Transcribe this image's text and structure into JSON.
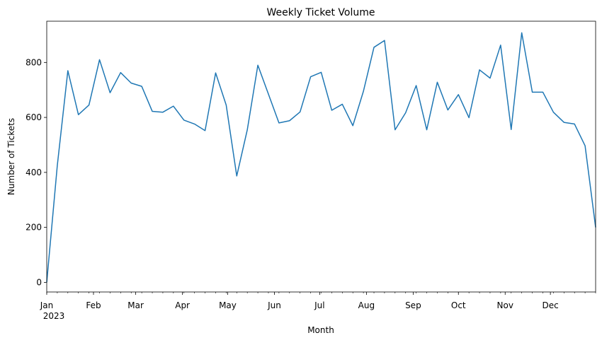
{
  "chart_data": {
    "type": "line",
    "title": "Weekly Ticket Volume",
    "xlabel": "Month",
    "ylabel": "Number of Tickets",
    "grid": false,
    "legend": "none",
    "ylim": [
      -35,
      950
    ],
    "y_ticks": [
      0,
      200,
      400,
      600,
      800
    ],
    "x_range": [
      "2023-01-01",
      "2023-12-31"
    ],
    "x_ticks": [
      {
        "date": "2023-01-01",
        "label": "Jan",
        "sublabel": "2023"
      },
      {
        "date": "2023-02-01",
        "label": "Feb"
      },
      {
        "date": "2023-03-01",
        "label": "Mar"
      },
      {
        "date": "2023-04-01",
        "label": "Apr"
      },
      {
        "date": "2023-05-01",
        "label": "May"
      },
      {
        "date": "2023-06-01",
        "label": "Jun"
      },
      {
        "date": "2023-07-01",
        "label": "Jul"
      },
      {
        "date": "2023-08-01",
        "label": "Aug"
      },
      {
        "date": "2023-09-01",
        "label": "Sep"
      },
      {
        "date": "2023-10-01",
        "label": "Oct"
      },
      {
        "date": "2023-11-01",
        "label": "Nov"
      },
      {
        "date": "2023-12-01",
        "label": "Dec"
      }
    ],
    "series": [
      {
        "color": "#1f77b4",
        "x": [
          "2023-01-01",
          "2023-01-08",
          "2023-01-15",
          "2023-01-22",
          "2023-01-29",
          "2023-02-05",
          "2023-02-12",
          "2023-02-19",
          "2023-02-26",
          "2023-03-05",
          "2023-03-12",
          "2023-03-19",
          "2023-03-26",
          "2023-04-02",
          "2023-04-09",
          "2023-04-16",
          "2023-04-23",
          "2023-04-30",
          "2023-05-07",
          "2023-05-14",
          "2023-05-21",
          "2023-05-28",
          "2023-06-04",
          "2023-06-11",
          "2023-06-18",
          "2023-06-25",
          "2023-07-02",
          "2023-07-09",
          "2023-07-16",
          "2023-07-23",
          "2023-07-30",
          "2023-08-06",
          "2023-08-13",
          "2023-08-20",
          "2023-08-27",
          "2023-09-03",
          "2023-09-10",
          "2023-09-17",
          "2023-09-24",
          "2023-10-01",
          "2023-10-08",
          "2023-10-15",
          "2023-10-22",
          "2023-10-29",
          "2023-11-05",
          "2023-11-12",
          "2023-11-19",
          "2023-11-26",
          "2023-12-03",
          "2023-12-10",
          "2023-12-17",
          "2023-12-24",
          "2023-12-31"
        ],
        "y": [
          0,
          425,
          770,
          610,
          645,
          810,
          690,
          763,
          725,
          713,
          622,
          619,
          641,
          590,
          576,
          552,
          762,
          645,
          387,
          555,
          790,
          685,
          580,
          588,
          620,
          748,
          764,
          626,
          648,
          570,
          695,
          855,
          880,
          555,
          617,
          716,
          555,
          728,
          627,
          683,
          599,
          773,
          743,
          863,
          556,
          908,
          692,
          692,
          619,
          582,
          576,
          497,
          200
        ]
      }
    ]
  }
}
